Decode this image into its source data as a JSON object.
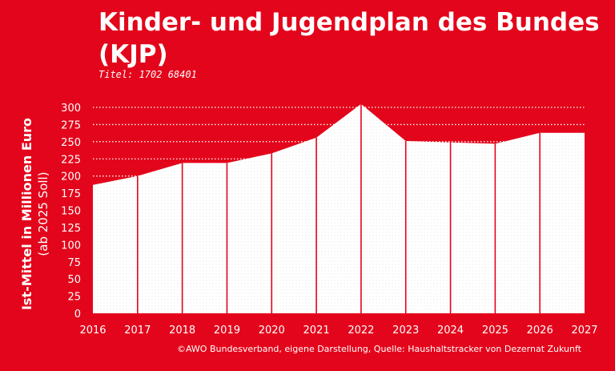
{
  "header": {
    "title": "Kinder- und Jugendplan des Bundes (KJP)",
    "subtitle": "Titel: 1702 68401"
  },
  "axis": {
    "ylabel_line1": "Ist-Mittel in Millionen Euro",
    "ylabel_line2": "(ab 2025 Soll)"
  },
  "footer": {
    "source": "©AWO Bundesverband, eigene Darstellung, Quelle: Haushaltstracker von Dezernat Zukunft"
  },
  "colors": {
    "background": "#e3051b",
    "area": "#ffffff",
    "grid": "#ffffff",
    "divider": "#e3051b"
  },
  "chart_data": {
    "type": "area",
    "x": [
      "2016",
      "2017",
      "2018",
      "2019",
      "2020",
      "2021",
      "2022",
      "2023",
      "2024",
      "2025",
      "2026",
      "2027"
    ],
    "values": [
      187,
      200,
      219,
      219,
      233,
      256,
      305,
      251,
      249,
      247,
      263,
      263
    ],
    "yticks": [
      "0",
      "25",
      "50",
      "75",
      "100",
      "125",
      "150",
      "175",
      "200",
      "225",
      "250",
      "275",
      "300"
    ],
    "ylim": [
      0,
      300
    ],
    "grid": "dotted horizontal"
  }
}
